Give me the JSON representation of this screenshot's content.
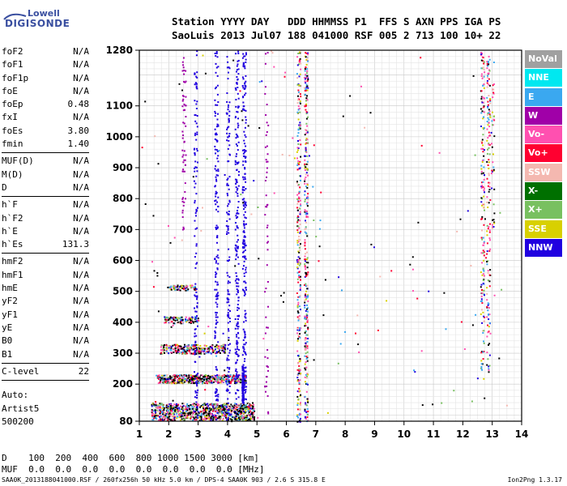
{
  "logo": {
    "line1": "Lowell",
    "line2": "DIGISONDE"
  },
  "header": {
    "line1": "Station YYYY DAY   DDD HHMMSS P1  FFS S AXN PPS IGA PS",
    "line2": "SaoLuis 2013 Jul07 188 041000 RSF 005 2 713 100 10+ 22"
  },
  "params": {
    "group1": [
      {
        "k": "foF2",
        "v": "N/A"
      },
      {
        "k": "foF1",
        "v": "N/A"
      },
      {
        "k": "foF1p",
        "v": "N/A"
      },
      {
        "k": "foE",
        "v": "N/A"
      },
      {
        "k": "foEp",
        "v": "0.48"
      },
      {
        "k": "fxI",
        "v": "N/A"
      },
      {
        "k": "foEs",
        "v": "3.80"
      },
      {
        "k": "fmin",
        "v": "1.40"
      }
    ],
    "group2": [
      {
        "k": "MUF(D)",
        "v": "N/A"
      },
      {
        "k": "M(D)",
        "v": "N/A"
      },
      {
        "k": "D",
        "v": "N/A"
      }
    ],
    "group3": [
      {
        "k": "h`F",
        "v": "N/A"
      },
      {
        "k": "h`F2",
        "v": "N/A"
      },
      {
        "k": "h`E",
        "v": "N/A"
      },
      {
        "k": "h`Es",
        "v": "131.3"
      }
    ],
    "group4": [
      {
        "k": "hmF2",
        "v": "N/A"
      },
      {
        "k": "hmF1",
        "v": "N/A"
      },
      {
        "k": "hmE",
        "v": "N/A"
      },
      {
        "k": "yF2",
        "v": "N/A"
      },
      {
        "k": "yF1",
        "v": "N/A"
      },
      {
        "k": "yE",
        "v": "N/A"
      },
      {
        "k": "B0",
        "v": "N/A"
      },
      {
        "k": "B1",
        "v": "N/A"
      }
    ],
    "group5": [
      {
        "k": "C-level",
        "v": "22"
      }
    ]
  },
  "auto": {
    "line1": "Auto:",
    "line2": "Artist5",
    "line3": "500200"
  },
  "legend": [
    {
      "label": "NoVal",
      "color": "#a0a0a0"
    },
    {
      "label": "NNE",
      "color": "#00e8f0"
    },
    {
      "label": "E",
      "color": "#3aa8f0"
    },
    {
      "label": "W",
      "color": "#a000a8"
    },
    {
      "label": "Vo-",
      "color": "#ff50b0"
    },
    {
      "label": "Vo+",
      "color": "#ff0030"
    },
    {
      "label": "SSW",
      "color": "#f4b8b0"
    },
    {
      "label": "X-",
      "color": "#007000"
    },
    {
      "label": "X+",
      "color": "#78c060"
    },
    {
      "label": "SSE",
      "color": "#d8d000"
    },
    {
      "label": "NNW",
      "color": "#2000e0"
    }
  ],
  "dmuf": {
    "line1": "D    100  200  400  600  800 1000 1500 3000 [km]",
    "line2": "MUF  0.0  0.0  0.0  0.0  0.0  0.0  0.0  0.0 [MHz]"
  },
  "footer": "SAA0K_2013188041000.RSF / 260fx256h 50 kHz 5.0 km / DPS-4 SAA0K 903 / 2.6 S 315.8 E",
  "version": "Ion2Png 1.3.17",
  "chart_data": {
    "type": "scatter",
    "xlim": [
      1,
      14
    ],
    "ylim": [
      80,
      1280
    ],
    "xticks": [
      "1",
      "2",
      "3",
      "4",
      "5",
      "6",
      "7",
      "8",
      "9",
      "10",
      "11",
      "12",
      "13",
      "14"
    ],
    "yticks": [
      "80",
      "200",
      "300",
      "400",
      "500",
      "600",
      "700",
      "800",
      "900",
      "1000",
      "1100",
      "1280"
    ],
    "grid": true,
    "ionogram_traces": [
      {
        "x": [
          1.4,
          4.9
        ],
        "y": [
          115,
          135
        ]
      },
      {
        "x": [
          1.6,
          4.6
        ],
        "y": [
          210,
          230
        ]
      },
      {
        "x": [
          1.8,
          3.8
        ],
        "y": [
          305,
          325
        ]
      },
      {
        "x": [
          1.9,
          3.1
        ],
        "y": [
          405,
          420
        ]
      },
      {
        "x": [
          2.0,
          2.9
        ],
        "y": [
          510,
          520
        ]
      },
      {
        "x": [
          4.5,
          4.6
        ],
        "y": [
          140,
          1280
        ]
      },
      {
        "x": [
          6.4,
          6.7
        ],
        "y": [
          80,
          1200
        ]
      },
      {
        "x": [
          12.6,
          13.0
        ],
        "y": [
          240,
          1280
        ]
      }
    ]
  }
}
